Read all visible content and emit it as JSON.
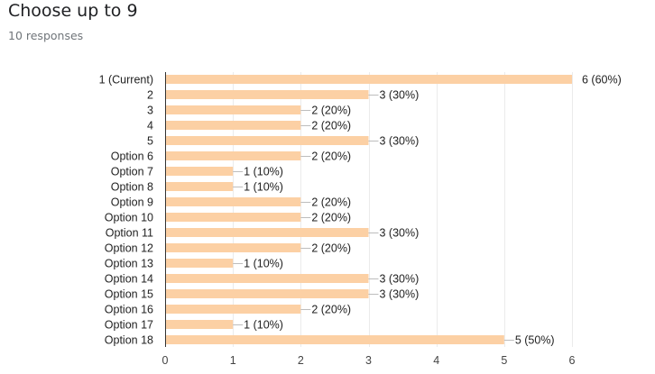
{
  "header": {
    "title": "Choose up to 9",
    "subtitle": "10 responses"
  },
  "chart_data": {
    "type": "bar",
    "orientation": "horizontal",
    "title": "Choose up to 9",
    "subtitle": "10 responses",
    "categories": [
      "1 (Current)",
      "2",
      "3",
      "4",
      "5",
      "Option 6",
      "Option 7",
      "Option 8",
      "Option 9",
      "Option 10",
      "Option 11",
      "Option 12",
      "Option 13",
      "Option 14",
      "Option 15",
      "Option 16",
      "Option 17",
      "Option 18"
    ],
    "values": [
      6,
      3,
      2,
      2,
      3,
      2,
      1,
      1,
      2,
      2,
      3,
      2,
      1,
      3,
      3,
      2,
      1,
      5
    ],
    "data_labels": [
      "6 (60%)",
      "3 (30%)",
      "2 (20%)",
      "2 (20%)",
      "3 (30%)",
      "2 (20%)",
      "1 (10%)",
      "1 (10%)",
      "2 (20%)",
      "2 (20%)",
      "3 (30%)",
      "2 (20%)",
      "1 (10%)",
      "3 (30%)",
      "3 (30%)",
      "2 (20%)",
      "1 (10%)",
      "5 (50%)"
    ],
    "x_ticks": [
      0,
      1,
      2,
      3,
      4,
      5,
      6
    ],
    "xlim": [
      0,
      6
    ],
    "grid": true,
    "legend": "none",
    "bar_color": "#fcd0a4",
    "connector_color": "#bdbdbd",
    "grid_color": "#ebebeb",
    "axis_color": "#333333"
  }
}
